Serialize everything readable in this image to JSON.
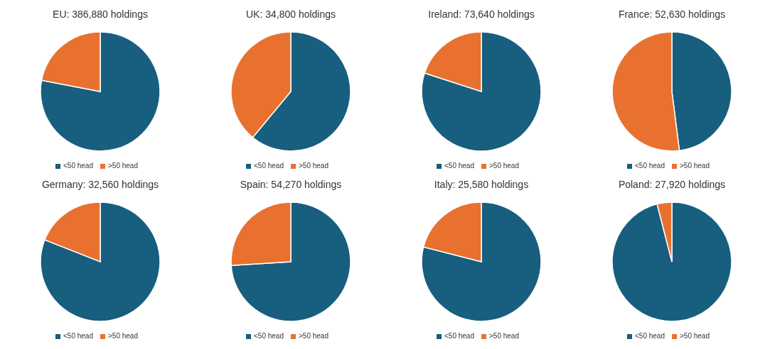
{
  "chart_data": [
    {
      "type": "pie",
      "title": "EU: 386,880 holdings",
      "categories": [
        "<50 head",
        ">50 head"
      ],
      "values": [
        78,
        22
      ],
      "colors": [
        "#175e7f",
        "#e87130"
      ],
      "legend": "bottom"
    },
    {
      "type": "pie",
      "title": "UK: 34,800 holdings",
      "categories": [
        "<50 head",
        ">50 head"
      ],
      "values": [
        61,
        39
      ],
      "colors": [
        "#175e7f",
        "#e87130"
      ],
      "legend": "bottom"
    },
    {
      "type": "pie",
      "title": "Ireland: 73,640 holdings",
      "categories": [
        "<50 head",
        ">50 head"
      ],
      "values": [
        80,
        20
      ],
      "colors": [
        "#175e7f",
        "#e87130"
      ],
      "legend": "bottom"
    },
    {
      "type": "pie",
      "title": "France: 52,630 holdings",
      "categories": [
        "<50 head",
        ">50 head"
      ],
      "values": [
        48,
        52
      ],
      "colors": [
        "#175e7f",
        "#e87130"
      ],
      "legend": "bottom"
    },
    {
      "type": "pie",
      "title": "Germany: 32,560 holdings",
      "categories": [
        "<50 head",
        ">50 head"
      ],
      "values": [
        81,
        19
      ],
      "colors": [
        "#175e7f",
        "#e87130"
      ],
      "legend": "bottom"
    },
    {
      "type": "pie",
      "title": "Spain: 54,270 holdings",
      "categories": [
        "<50 head",
        ">50 head"
      ],
      "values": [
        74,
        26
      ],
      "colors": [
        "#175e7f",
        "#e87130"
      ],
      "legend": "bottom"
    },
    {
      "type": "pie",
      "title": "Italy: 25,580 holdings",
      "categories": [
        "<50 head",
        ">50 head"
      ],
      "values": [
        79,
        21
      ],
      "colors": [
        "#175e7f",
        "#e87130"
      ],
      "legend": "bottom"
    },
    {
      "type": "pie",
      "title": "Poland: 27,920 holdings",
      "categories": [
        "<50 head",
        ">50 head"
      ],
      "values": [
        96,
        4
      ],
      "colors": [
        "#175e7f",
        "#e87130"
      ],
      "legend": "bottom"
    }
  ]
}
